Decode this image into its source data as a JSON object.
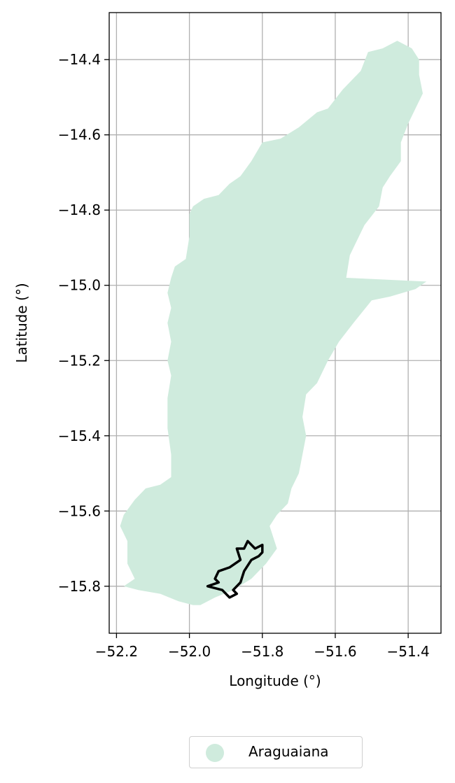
{
  "chart_data": {
    "type": "map",
    "xlabel": "Longitude (°)",
    "ylabel": "Latitude (°)",
    "xlim": [
      -52.22,
      -51.31
    ],
    "ylim": [
      -15.925,
      -14.275
    ],
    "x_ticks": [
      -52.2,
      -52.0,
      -51.8,
      -51.6,
      -51.4
    ],
    "y_ticks": [
      -14.4,
      -14.6,
      -14.8,
      -15.0,
      -15.2,
      -15.4,
      -15.6,
      -15.8
    ],
    "x_tick_labels": [
      "−52.2",
      "−52.0",
      "−51.8",
      "−51.6",
      "−51.4"
    ],
    "y_tick_labels": [
      "−14.4",
      "−14.6",
      "−14.8",
      "−15.0",
      "−15.2",
      "−15.4",
      "−15.6",
      "−15.8"
    ],
    "grid": true,
    "legend_position": "bottom-center",
    "region": {
      "name": "Araguaiana",
      "color": "#cfebdd",
      "polygon": [
        [
          -51.99,
          -15.85
        ],
        [
          -52.03,
          -15.84
        ],
        [
          -52.08,
          -15.82
        ],
        [
          -52.14,
          -15.81
        ],
        [
          -52.18,
          -15.8
        ],
        [
          -52.15,
          -15.78
        ],
        [
          -52.17,
          -15.74
        ],
        [
          -52.17,
          -15.68
        ],
        [
          -52.19,
          -15.64
        ],
        [
          -52.18,
          -15.61
        ],
        [
          -52.15,
          -15.57
        ],
        [
          -52.12,
          -15.54
        ],
        [
          -52.08,
          -15.53
        ],
        [
          -52.05,
          -15.51
        ],
        [
          -52.05,
          -15.45
        ],
        [
          -52.06,
          -15.38
        ],
        [
          -52.06,
          -15.3
        ],
        [
          -52.05,
          -15.24
        ],
        [
          -52.06,
          -15.2
        ],
        [
          -52.05,
          -15.15
        ],
        [
          -52.06,
          -15.1
        ],
        [
          -52.05,
          -15.06
        ],
        [
          -52.06,
          -15.02
        ],
        [
          -52.05,
          -14.98
        ],
        [
          -52.04,
          -14.95
        ],
        [
          -52.01,
          -14.93
        ],
        [
          -52.0,
          -14.87
        ],
        [
          -52.0,
          -14.81
        ],
        [
          -51.99,
          -14.79
        ],
        [
          -51.96,
          -14.77
        ],
        [
          -51.92,
          -14.76
        ],
        [
          -51.89,
          -14.73
        ],
        [
          -51.86,
          -14.71
        ],
        [
          -51.83,
          -14.67
        ],
        [
          -51.8,
          -14.62
        ],
        [
          -51.75,
          -14.61
        ],
        [
          -51.7,
          -14.58
        ],
        [
          -51.65,
          -14.54
        ],
        [
          -51.62,
          -14.53
        ],
        [
          -51.58,
          -14.48
        ],
        [
          -51.53,
          -14.43
        ],
        [
          -51.51,
          -14.38
        ],
        [
          -51.47,
          -14.37
        ],
        [
          -51.43,
          -14.35
        ],
        [
          -51.39,
          -14.37
        ],
        [
          -51.37,
          -14.4
        ],
        [
          -51.37,
          -14.44
        ],
        [
          -51.36,
          -14.49
        ],
        [
          -51.38,
          -14.53
        ],
        [
          -51.4,
          -14.57
        ],
        [
          -51.42,
          -14.62
        ],
        [
          -51.42,
          -14.67
        ],
        [
          -51.45,
          -14.71
        ],
        [
          -51.47,
          -14.74
        ],
        [
          -51.48,
          -14.79
        ],
        [
          -51.52,
          -14.84
        ],
        [
          -51.54,
          -14.88
        ],
        [
          -51.56,
          -14.92
        ],
        [
          -51.57,
          -14.98
        ],
        [
          -51.35,
          -14.99
        ],
        [
          -51.38,
          -15.01
        ],
        [
          -51.45,
          -15.03
        ],
        [
          -51.5,
          -15.04
        ],
        [
          -51.55,
          -15.1
        ],
        [
          -51.59,
          -15.15
        ],
        [
          -51.62,
          -15.2
        ],
        [
          -51.64,
          -15.24
        ],
        [
          -51.65,
          -15.26
        ],
        [
          -51.68,
          -15.29
        ],
        [
          -51.69,
          -15.35
        ],
        [
          -51.68,
          -15.4
        ],
        [
          -51.69,
          -15.45
        ],
        [
          -51.7,
          -15.5
        ],
        [
          -51.72,
          -15.54
        ],
        [
          -51.73,
          -15.58
        ],
        [
          -51.76,
          -15.61
        ],
        [
          -51.78,
          -15.64
        ],
        [
          -51.76,
          -15.7
        ],
        [
          -51.79,
          -15.74
        ],
        [
          -51.83,
          -15.78
        ],
        [
          -51.88,
          -15.81
        ],
        [
          -51.93,
          -15.83
        ],
        [
          -51.97,
          -15.85
        ],
        [
          -51.99,
          -15.85
        ]
      ]
    },
    "outline": {
      "color": "#000000",
      "polygon": [
        [
          -51.95,
          -15.8
        ],
        [
          -51.91,
          -15.81
        ],
        [
          -51.89,
          -15.83
        ],
        [
          -51.87,
          -15.82
        ],
        [
          -51.88,
          -15.81
        ],
        [
          -51.86,
          -15.79
        ],
        [
          -51.85,
          -15.76
        ],
        [
          -51.83,
          -15.73
        ],
        [
          -51.81,
          -15.72
        ],
        [
          -51.8,
          -15.71
        ],
        [
          -51.8,
          -15.69
        ],
        [
          -51.82,
          -15.7
        ],
        [
          -51.84,
          -15.68
        ],
        [
          -51.85,
          -15.7
        ],
        [
          -51.87,
          -15.7
        ],
        [
          -51.86,
          -15.73
        ],
        [
          -51.89,
          -15.75
        ],
        [
          -51.92,
          -15.76
        ],
        [
          -51.93,
          -15.78
        ],
        [
          -51.92,
          -15.79
        ],
        [
          -51.95,
          -15.8
        ]
      ]
    }
  },
  "legend": {
    "label": "Araguaiana",
    "marker_color": "#cfebdd"
  }
}
